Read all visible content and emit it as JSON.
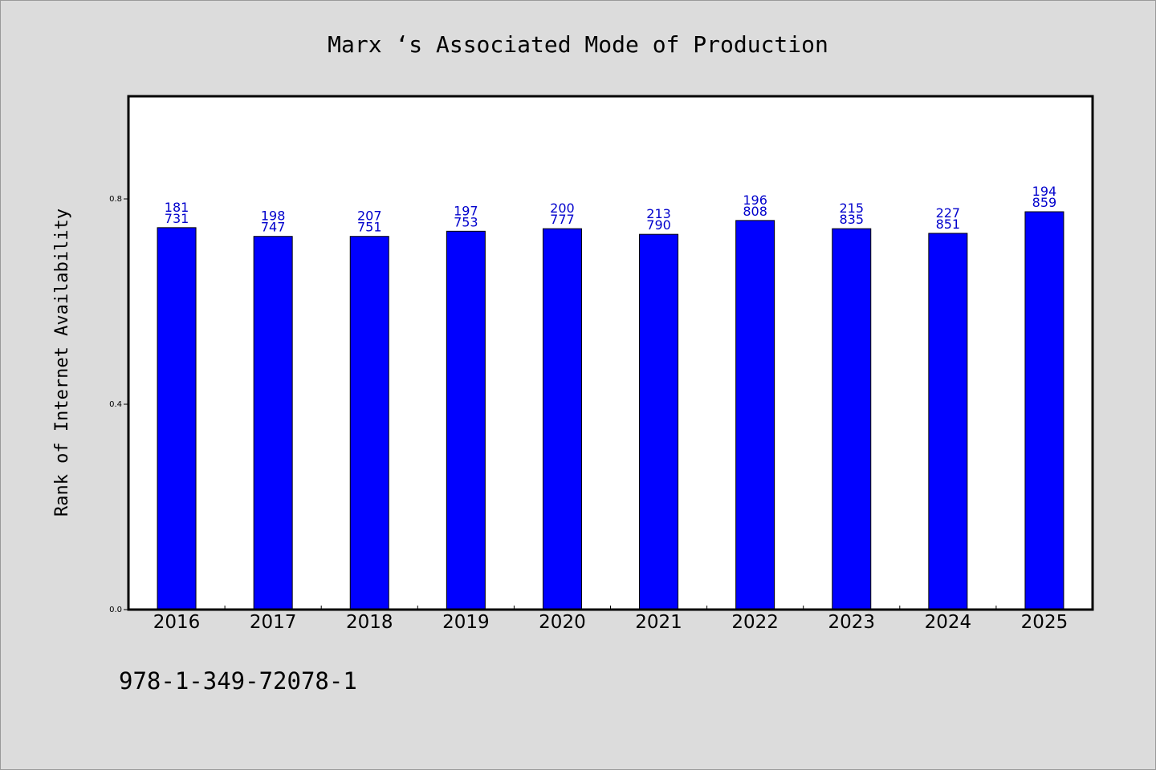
{
  "footnote": "978-1-349-72078-1",
  "chart_data": {
    "type": "bar",
    "title": "Marx ‘s Associated Mode of Production",
    "ylabel": "Rank of Internet Availability",
    "xlabel": "",
    "categories": [
      "2016",
      "2017",
      "2018",
      "2019",
      "2020",
      "2021",
      "2022",
      "2023",
      "2024",
      "2025"
    ],
    "values": [
      0.744,
      0.727,
      0.727,
      0.737,
      0.742,
      0.731,
      0.758,
      0.742,
      0.733,
      0.775
    ],
    "bar_labels": [
      [
        "181",
        "731"
      ],
      [
        "198",
        "747"
      ],
      [
        "207",
        "751"
      ],
      [
        "197",
        "753"
      ],
      [
        "200",
        "777"
      ],
      [
        "213",
        "790"
      ],
      [
        "196",
        "808"
      ],
      [
        "215",
        "835"
      ],
      [
        "227",
        "851"
      ],
      [
        "194",
        "859"
      ]
    ],
    "yticks": [
      "0.0",
      "0.4",
      "0.8"
    ],
    "ytick_values": [
      0.0,
      0.4,
      0.8
    ],
    "ylim": [
      0,
      1.0
    ],
    "grid": false,
    "legend": "none",
    "colors": {
      "bar": "#0000ff",
      "bar_label": "#0000cc",
      "plot_background": "#ffffff",
      "page_background": "#dcdcdc"
    }
  }
}
